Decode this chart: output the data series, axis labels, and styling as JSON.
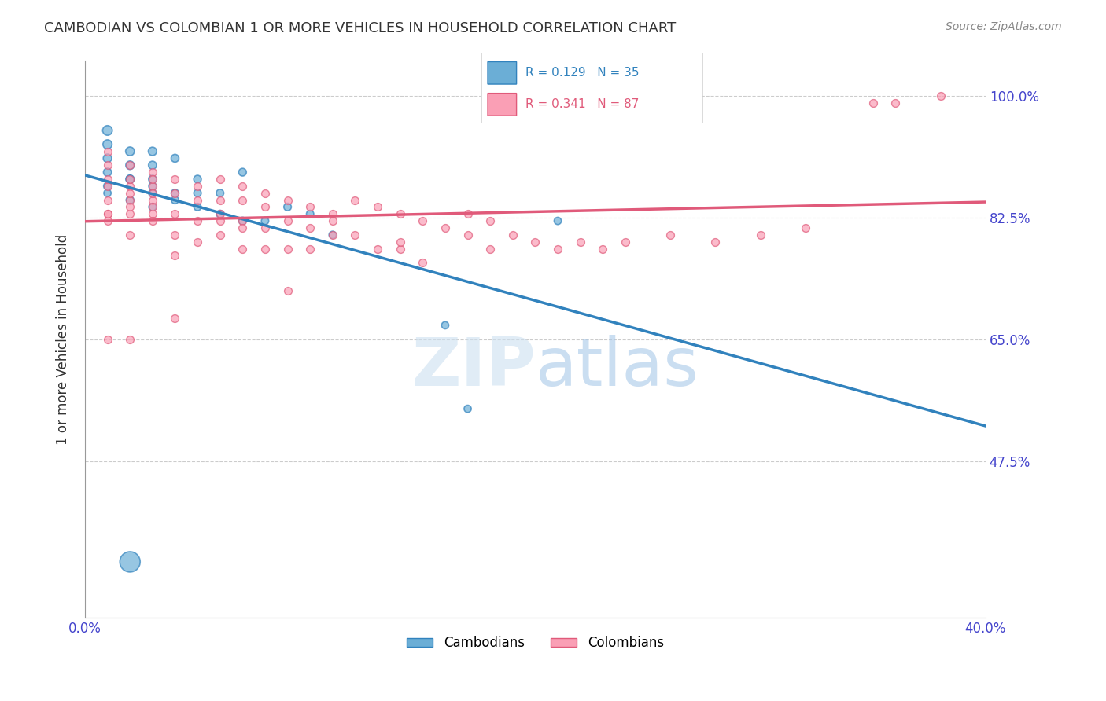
{
  "title": "CAMBODIAN VS COLOMBIAN 1 OR MORE VEHICLES IN HOUSEHOLD CORRELATION CHART",
  "source": "Source: ZipAtlas.com",
  "ylabel": "1 or more Vehicles in Household",
  "xlim": [
    0.0,
    0.4
  ],
  "ylim": [
    0.25,
    1.05
  ],
  "yticks": [
    0.475,
    0.65,
    0.825,
    1.0
  ],
  "ytick_labels": [
    "47.5%",
    "65.0%",
    "82.5%",
    "100.0%"
  ],
  "xticks": [
    0.0,
    0.05,
    0.1,
    0.15,
    0.2,
    0.25,
    0.3,
    0.35,
    0.4
  ],
  "xtick_labels": [
    "0.0%",
    "",
    "",
    "",
    "",
    "",
    "",
    "",
    "40.0%"
  ],
  "legend_cambodians": "R = 0.129   N = 35",
  "legend_colombians": "R = 0.341   N = 87",
  "blue_color": "#6baed6",
  "pink_color": "#fa9fb5",
  "blue_line_color": "#3182bd",
  "pink_line_color": "#e05a7a",
  "axis_label_color": "#4444cc",
  "title_color": "#333333",
  "cambodians_x": [
    0.01,
    0.01,
    0.01,
    0.01,
    0.01,
    0.01,
    0.02,
    0.02,
    0.02,
    0.02,
    0.02,
    0.03,
    0.03,
    0.03,
    0.03,
    0.03,
    0.03,
    0.04,
    0.04,
    0.04,
    0.05,
    0.05,
    0.05,
    0.06,
    0.06,
    0.07,
    0.07,
    0.08,
    0.09,
    0.1,
    0.11,
    0.16,
    0.17,
    0.21,
    0.02
  ],
  "cambodians_y": [
    0.95,
    0.93,
    0.91,
    0.89,
    0.87,
    0.86,
    0.92,
    0.9,
    0.88,
    0.85,
    0.88,
    0.92,
    0.9,
    0.88,
    0.86,
    0.87,
    0.84,
    0.91,
    0.86,
    0.85,
    0.88,
    0.86,
    0.84,
    0.86,
    0.83,
    0.89,
    0.82,
    0.82,
    0.84,
    0.83,
    0.8,
    0.67,
    0.55,
    0.82,
    0.33
  ],
  "cambodians_sizes": [
    80,
    70,
    60,
    55,
    50,
    45,
    65,
    60,
    55,
    50,
    55,
    60,
    55,
    52,
    50,
    48,
    46,
    52,
    50,
    48,
    50,
    48,
    46,
    48,
    46,
    50,
    46,
    46,
    48,
    46,
    44,
    44,
    44,
    44,
    350
  ],
  "colombians_x": [
    0.01,
    0.01,
    0.01,
    0.01,
    0.01,
    0.01,
    0.01,
    0.02,
    0.02,
    0.02,
    0.02,
    0.02,
    0.02,
    0.02,
    0.03,
    0.03,
    0.03,
    0.03,
    0.03,
    0.03,
    0.03,
    0.04,
    0.04,
    0.04,
    0.04,
    0.05,
    0.05,
    0.05,
    0.05,
    0.06,
    0.06,
    0.06,
    0.06,
    0.07,
    0.07,
    0.07,
    0.07,
    0.08,
    0.08,
    0.08,
    0.08,
    0.09,
    0.09,
    0.09,
    0.1,
    0.1,
    0.1,
    0.11,
    0.11,
    0.12,
    0.12,
    0.13,
    0.13,
    0.14,
    0.14,
    0.15,
    0.15,
    0.16,
    0.17,
    0.18,
    0.18,
    0.19,
    0.2,
    0.21,
    0.22,
    0.23,
    0.24,
    0.26,
    0.28,
    0.3,
    0.32,
    0.01,
    0.02,
    0.03,
    0.04,
    0.06,
    0.07,
    0.09,
    0.11,
    0.14,
    0.17,
    0.35,
    0.36,
    0.38,
    0.01,
    0.02,
    0.04
  ],
  "colombians_y": [
    0.92,
    0.9,
    0.87,
    0.85,
    0.83,
    0.88,
    0.82,
    0.9,
    0.87,
    0.85,
    0.83,
    0.88,
    0.86,
    0.8,
    0.89,
    0.87,
    0.85,
    0.83,
    0.88,
    0.86,
    0.82,
    0.88,
    0.86,
    0.83,
    0.8,
    0.87,
    0.85,
    0.82,
    0.79,
    0.88,
    0.85,
    0.82,
    0.8,
    0.87,
    0.85,
    0.82,
    0.78,
    0.86,
    0.84,
    0.81,
    0.78,
    0.85,
    0.82,
    0.78,
    0.84,
    0.81,
    0.78,
    0.83,
    0.8,
    0.85,
    0.8,
    0.84,
    0.78,
    0.83,
    0.78,
    0.82,
    0.76,
    0.81,
    0.8,
    0.82,
    0.78,
    0.8,
    0.79,
    0.78,
    0.79,
    0.78,
    0.79,
    0.8,
    0.79,
    0.8,
    0.81,
    0.83,
    0.84,
    0.84,
    0.77,
    0.83,
    0.81,
    0.72,
    0.82,
    0.79,
    0.83,
    0.99,
    0.99,
    1.0,
    0.65,
    0.65,
    0.68
  ]
}
